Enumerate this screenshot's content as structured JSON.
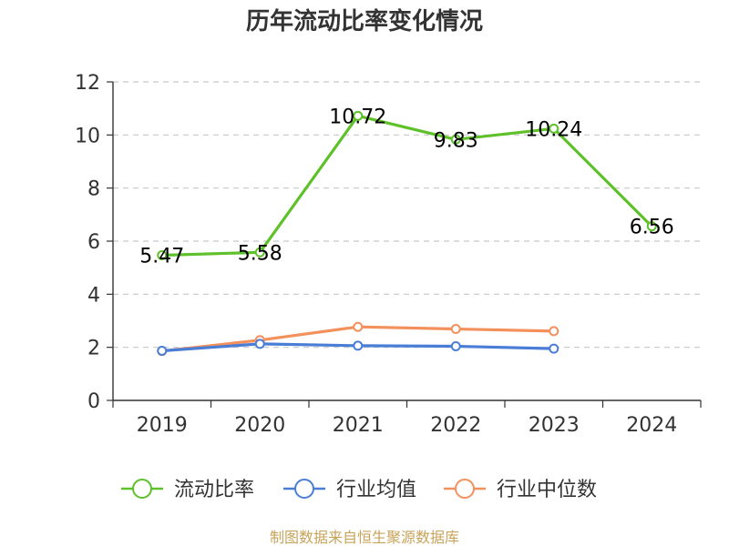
{
  "title": "历年流动比率变化情况",
  "source": "制图数据来自恒生聚源数据库",
  "chart_data": {
    "type": "line",
    "title": "历年流动比率变化情况",
    "x": [
      "2019",
      "2020",
      "2021",
      "2022",
      "2023",
      "2024"
    ],
    "ylim": [
      0,
      12
    ],
    "yticks": [
      0,
      2,
      4,
      6,
      8,
      10,
      12
    ],
    "grid": true,
    "legend_position": "bottom",
    "series": [
      {
        "name": "流动比率",
        "color": "#5ec12a",
        "values": [
          5.47,
          5.58,
          10.72,
          9.83,
          10.24,
          6.56
        ],
        "labels": [
          "5.47",
          "5.58",
          "10.72",
          "9.83",
          "10.24",
          "6.56"
        ]
      },
      {
        "name": "行业均值",
        "color": "#4a7ed6",
        "values": [
          1.87,
          2.13,
          2.06,
          2.04,
          1.95,
          null
        ]
      },
      {
        "name": "行业中位数",
        "color": "#f3905c",
        "values": [
          1.86,
          2.27,
          2.77,
          2.69,
          2.61,
          null
        ]
      }
    ]
  }
}
